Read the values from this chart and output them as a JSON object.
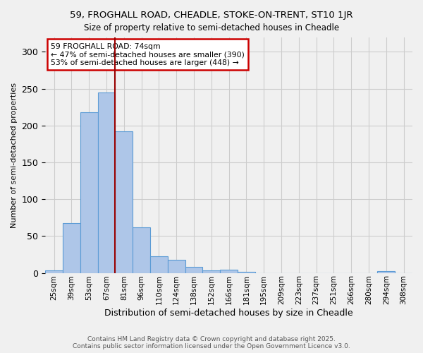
{
  "title1": "59, FROGHALL ROAD, CHEADLE, STOKE-ON-TRENT, ST10 1JR",
  "title2": "Size of property relative to semi-detached houses in Cheadle",
  "xlabel": "Distribution of semi-detached houses by size in Cheadle",
  "ylabel": "Number of semi-detached properties",
  "bins": [
    "25sqm",
    "39sqm",
    "53sqm",
    "67sqm",
    "81sqm",
    "96sqm",
    "110sqm",
    "124sqm",
    "138sqm",
    "152sqm",
    "166sqm",
    "181sqm",
    "195sqm",
    "209sqm",
    "223sqm",
    "237sqm",
    "251sqm",
    "266sqm",
    "280sqm",
    "294sqm",
    "308sqm"
  ],
  "values": [
    3,
    68,
    218,
    245,
    192,
    62,
    23,
    18,
    8,
    3,
    4,
    1,
    0,
    0,
    0,
    0,
    0,
    0,
    0,
    2,
    0
  ],
  "bar_color": "#aec6e8",
  "bar_edge_color": "#5b9bd5",
  "grid_color": "#cccccc",
  "vline_x_right_of_bar": 3,
  "vline_color": "#990000",
  "annotation_text": "59 FROGHALL ROAD: 74sqm\n← 47% of semi-detached houses are smaller (390)\n53% of semi-detached houses are larger (448) →",
  "annotation_box_color": "#ffffff",
  "annotation_box_edge": "#cc0000",
  "footnote1": "Contains HM Land Registry data © Crown copyright and database right 2025.",
  "footnote2": "Contains public sector information licensed under the Open Government Licence v3.0.",
  "ylim": [
    0,
    320
  ],
  "bg_color": "#f0f0f0"
}
